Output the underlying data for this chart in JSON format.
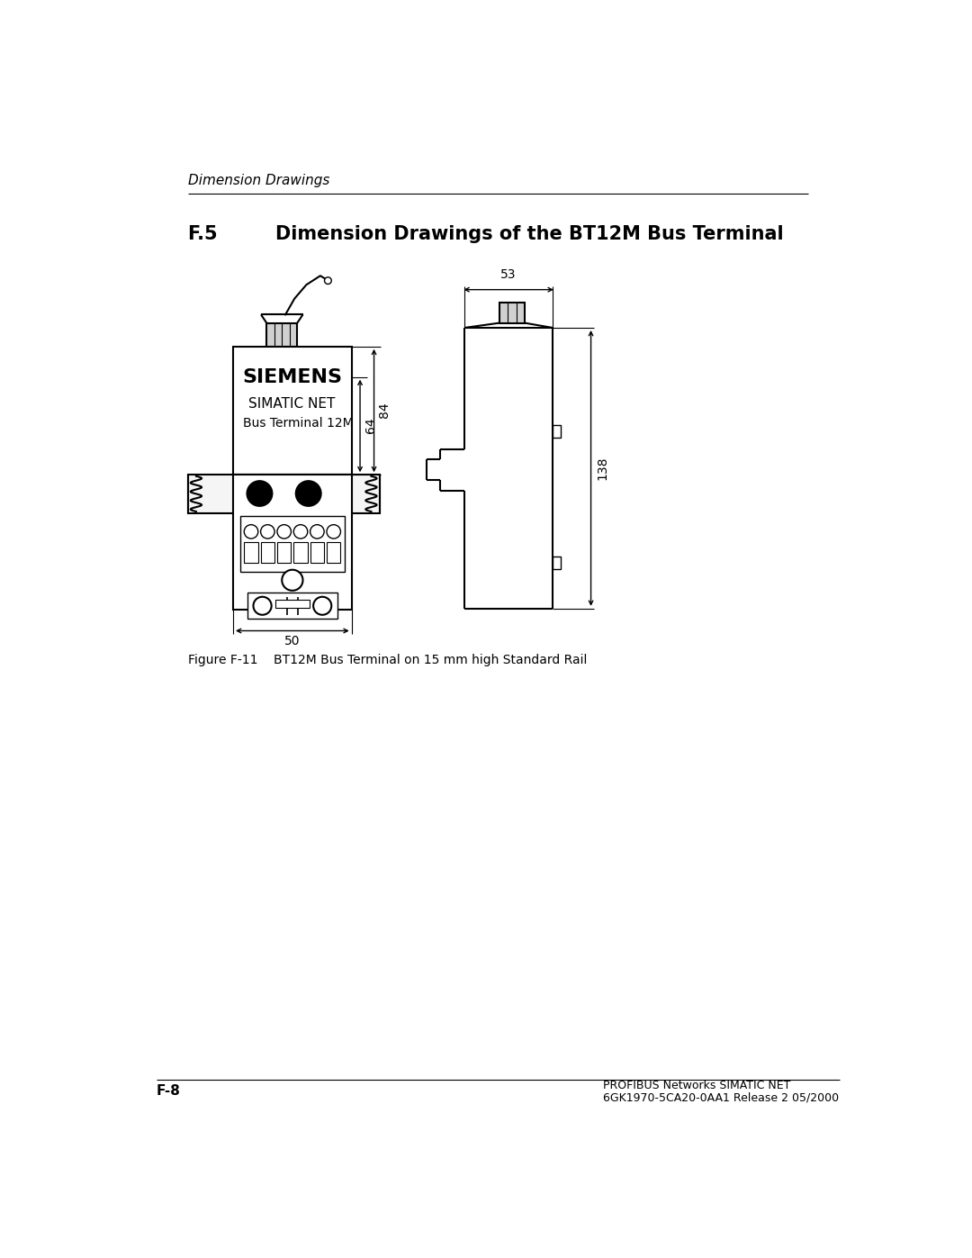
{
  "page_title": "Dimension Drawings",
  "section_title": "F.5",
  "section_heading": "Dimension Drawings of the BT12M Bus Terminal",
  "figure_caption": "Figure F-11    BT12M Bus Terminal on 15 mm high Standard Rail",
  "footer_left": "F-8",
  "footer_right_line1": "PROFIBUS Networks SIMATIC NET",
  "footer_right_line2": "6GK1970-5CA20-0AA1 Release 2 05/2000",
  "dim_84": "84",
  "dim_64": "64",
  "dim_50": "50",
  "dim_53": "53",
  "dim_138": "138",
  "siemens_text": "SIEMENS",
  "simatic_text": "SIMATIC NET",
  "terminal_text": "Bus Terminal 12M",
  "bg_color": "#ffffff",
  "line_color": "#000000"
}
